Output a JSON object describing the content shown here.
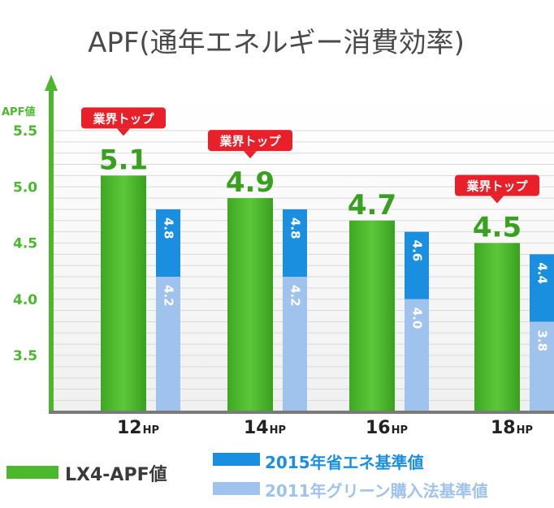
{
  "chart_data": {
    "type": "bar",
    "title": "APF(通年エネルギー消費効率)",
    "ylabel": "APF値",
    "ylim": [
      3.0,
      5.6
    ],
    "yticks": [
      "5.5",
      "5.0",
      "4.5",
      "4.0",
      "3.5"
    ],
    "ytick_values": [
      5.5,
      5.0,
      4.5,
      4.0,
      3.5
    ],
    "grid": true,
    "legend_position": "bottom",
    "categories": [
      {
        "num": "12",
        "unit": "HP"
      },
      {
        "num": "14",
        "unit": "HP"
      },
      {
        "num": "16",
        "unit": "HP"
      },
      {
        "num": "18",
        "unit": "HP"
      }
    ],
    "series": [
      {
        "name": "LX4-APF値",
        "color": "#4cb82e",
        "values": [
          5.1,
          4.9,
          4.7,
          4.5
        ],
        "labels": [
          "5.1",
          "4.9",
          "4.7",
          "4.5"
        ]
      },
      {
        "name": "2015年省エネ基準値",
        "color": "#1a8fe0",
        "values": [
          4.8,
          4.8,
          4.6,
          4.4
        ],
        "labels": [
          "4.8",
          "4.8",
          "4.6",
          "4.4"
        ]
      },
      {
        "name": "2011年グリーン購入法基準値",
        "color": "#9fc3ec",
        "values": [
          4.2,
          4.2,
          4.0,
          3.8
        ],
        "labels": [
          "4.2",
          "4.2",
          "4.0",
          "3.8"
        ]
      }
    ],
    "annotations": [
      {
        "text": "業界トップ",
        "category_index": 0
      },
      {
        "text": "業界トップ",
        "category_index": 1
      },
      {
        "text": "業界トップ",
        "category_index": 3
      }
    ]
  }
}
